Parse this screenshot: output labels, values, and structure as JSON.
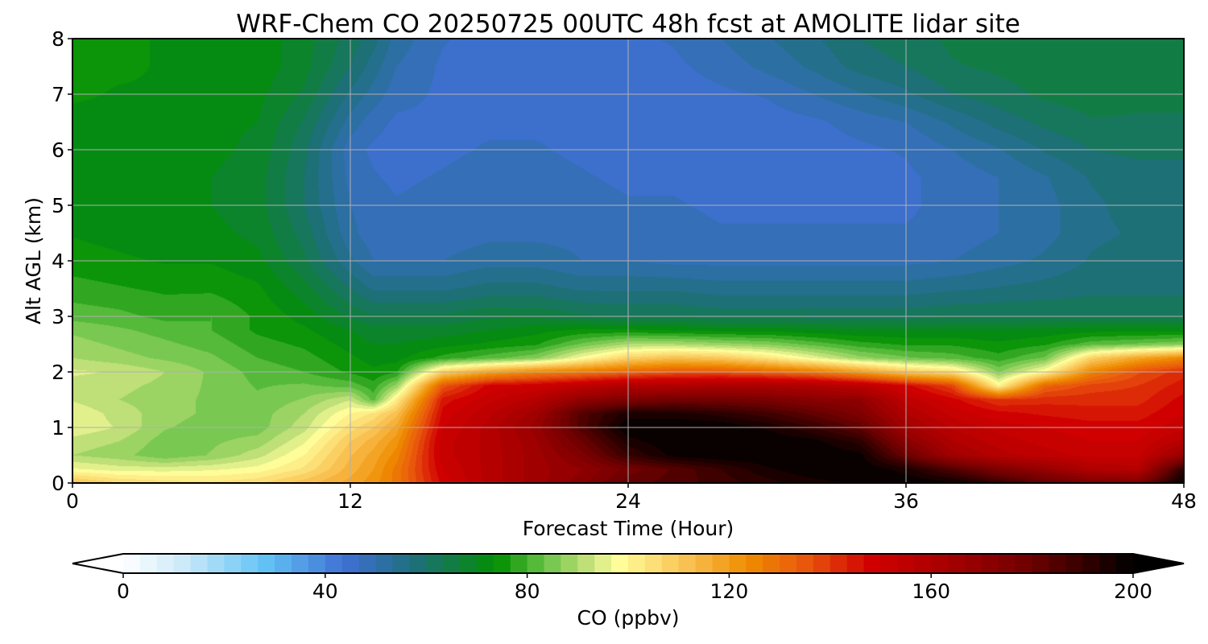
{
  "chart_data": {
    "type": "heatmap",
    "title": "WRF-Chem CO  20250725 00UTC 48h fcst at AMOLITE lidar site",
    "xlabel": "Forecast Time (Hour)",
    "ylabel": "Alt AGL (km)",
    "xlim": [
      0,
      48
    ],
    "ylim": [
      0,
      8
    ],
    "xticks": [
      0,
      12,
      24,
      36,
      48
    ],
    "yticks": [
      0,
      1,
      2,
      3,
      4,
      5,
      6,
      7,
      8
    ],
    "grid": true,
    "x": [
      0,
      2,
      4,
      6,
      8,
      10,
      12,
      13,
      14,
      16,
      18,
      20,
      22,
      24,
      26,
      28,
      30,
      32,
      34,
      36,
      38,
      40,
      42,
      44,
      46,
      48
    ],
    "y": [
      0,
      0.25,
      0.5,
      0.75,
      1,
      1.25,
      1.5,
      1.75,
      2,
      2.25,
      2.5,
      2.75,
      3,
      3.5,
      4,
      4.5,
      5,
      5.5,
      6,
      6.5,
      7,
      7.5,
      8
    ],
    "z": [
      [
        112,
        107,
        105,
        104,
        106,
        112,
        118,
        122,
        128,
        148,
        158,
        165,
        172,
        182,
        185,
        188,
        192,
        195,
        198,
        200,
        198,
        190,
        182,
        176,
        175,
        200
      ],
      [
        97,
        95,
        95,
        96,
        98,
        104,
        115,
        120,
        128,
        150,
        158,
        165,
        170,
        178,
        184,
        190,
        196,
        200,
        200,
        195,
        185,
        175,
        168,
        160,
        158,
        192
      ],
      [
        90,
        88,
        84,
        87,
        92,
        100,
        113,
        118,
        125,
        152,
        158,
        165,
        175,
        190,
        198,
        200,
        200,
        200,
        198,
        180,
        165,
        158,
        155,
        152,
        152,
        168
      ],
      [
        92,
        90,
        85,
        86,
        88,
        96,
        110,
        115,
        122,
        152,
        158,
        166,
        180,
        195,
        200,
        200,
        200,
        198,
        192,
        172,
        160,
        155,
        152,
        150,
        150,
        158
      ],
      [
        96,
        93,
        87,
        85,
        85,
        92,
        105,
        110,
        118,
        150,
        158,
        168,
        185,
        200,
        200,
        200,
        196,
        190,
        182,
        165,
        156,
        152,
        150,
        148,
        148,
        152
      ],
      [
        96,
        92,
        88,
        86,
        85,
        90,
        100,
        104,
        112,
        148,
        156,
        165,
        185,
        195,
        195,
        192,
        188,
        182,
        175,
        160,
        152,
        148,
        146,
        145,
        145,
        150
      ],
      [
        93,
        90,
        88,
        86,
        84,
        87,
        93,
        82,
        102,
        145,
        152,
        158,
        170,
        175,
        178,
        178,
        176,
        172,
        170,
        155,
        148,
        140,
        142,
        142,
        142,
        148
      ],
      [
        92,
        91,
        89,
        86,
        83,
        84,
        82,
        78,
        88,
        135,
        148,
        150,
        155,
        160,
        160,
        162,
        162,
        160,
        156,
        148,
        138,
        100,
        132,
        138,
        140,
        145
      ],
      [
        94,
        93,
        90,
        86,
        82,
        80,
        76,
        74,
        76,
        108,
        118,
        125,
        128,
        132,
        135,
        135,
        132,
        128,
        120,
        110,
        105,
        86,
        100,
        125,
        136,
        142
      ],
      [
        90,
        88,
        86,
        84,
        80,
        78,
        74,
        72,
        72,
        78,
        82,
        86,
        98,
        108,
        112,
        110,
        104,
        96,
        88,
        84,
        82,
        78,
        84,
        108,
        118,
        125
      ],
      [
        88,
        86,
        84,
        82,
        78,
        76,
        72,
        70,
        70,
        72,
        74,
        76,
        84,
        90,
        90,
        88,
        86,
        82,
        78,
        76,
        76,
        74,
        76,
        82,
        84,
        86
      ],
      [
        86,
        84,
        82,
        80,
        76,
        74,
        70,
        68,
        68,
        68,
        70,
        72,
        74,
        74,
        73,
        72,
        72,
        71,
        70,
        70,
        70,
        70,
        71,
        72,
        72,
        72
      ],
      [
        82,
        81,
        79,
        80,
        76,
        72,
        66,
        64,
        64,
        64,
        66,
        66,
        64,
        63,
        63,
        62,
        62,
        62,
        62,
        62,
        63,
        63,
        63,
        63,
        63,
        63
      ],
      [
        78,
        77,
        76,
        76,
        74,
        68,
        60,
        56,
        56,
        56,
        58,
        58,
        56,
        56,
        56,
        55,
        55,
        55,
        55,
        55,
        56,
        57,
        58,
        59,
        59,
        59
      ],
      [
        75,
        74,
        73,
        73,
        71,
        64,
        54,
        50,
        50,
        50,
        52,
        52,
        50,
        50,
        49,
        49,
        49,
        49,
        49,
        49,
        50,
        52,
        54,
        57,
        58,
        58
      ],
      [
        73,
        72,
        71,
        71,
        69,
        62,
        51,
        48,
        48,
        48,
        49,
        49,
        49,
        48,
        48,
        47,
        47,
        47,
        47,
        47,
        48,
        50,
        52,
        56,
        57,
        57
      ],
      [
        72,
        71,
        70,
        70,
        68,
        60,
        50,
        48,
        47,
        48,
        49,
        49,
        48,
        47,
        47,
        46,
        46,
        46,
        46,
        46,
        48,
        50,
        52,
        56,
        58,
        57
      ],
      [
        72,
        71,
        70,
        70,
        68,
        60,
        49,
        47,
        46,
        47,
        48,
        48,
        47,
        46,
        46,
        45,
        45,
        45,
        45,
        46,
        48,
        50,
        53,
        57,
        58,
        58
      ],
      [
        72,
        72,
        71,
        71,
        69,
        61,
        48,
        46,
        45,
        46,
        47,
        47,
        46,
        45,
        45,
        45,
        45,
        45,
        46,
        47,
        50,
        53,
        57,
        60,
        61,
        61
      ],
      [
        72,
        72,
        72,
        71,
        70,
        63,
        52,
        48,
        46,
        46,
        46,
        46,
        46,
        45,
        45,
        45,
        45,
        46,
        48,
        50,
        54,
        58,
        61,
        63,
        63,
        63
      ],
      [
        74,
        73,
        73,
        72,
        71,
        66,
        56,
        52,
        48,
        46,
        45,
        45,
        45,
        45,
        45,
        46,
        47,
        50,
        53,
        56,
        60,
        62,
        64,
        65,
        64,
        64
      ],
      [
        74,
        74,
        73,
        73,
        72,
        68,
        60,
        55,
        50,
        46,
        45,
        45,
        45,
        45,
        46,
        48,
        51,
        54,
        58,
        60,
        63,
        64,
        65,
        65,
        65,
        65
      ],
      [
        74,
        74,
        73,
        73,
        72,
        68,
        62,
        58,
        52,
        47,
        45,
        45,
        45,
        46,
        47,
        50,
        53,
        56,
        60,
        62,
        64,
        65,
        65,
        65,
        65,
        65
      ]
    ],
    "colorbar": {
      "label": "CO  (ppbv)",
      "min": 0,
      "max": 200,
      "ticks": [
        0,
        40,
        80,
        120,
        160,
        200
      ],
      "extend": "both",
      "levels": 60,
      "colormap": [
        [
          0,
          "#ffffff"
        ],
        [
          12,
          "#cbe9f8"
        ],
        [
          28,
          "#62c3f6"
        ],
        [
          44,
          "#3f6fd3"
        ],
        [
          58,
          "#1d6f79"
        ],
        [
          74,
          "#019000"
        ],
        [
          84,
          "#6fc54b"
        ],
        [
          92,
          "#c2e07a"
        ],
        [
          98,
          "#ffff9c"
        ],
        [
          112,
          "#f9bf4f"
        ],
        [
          124,
          "#ef8b00"
        ],
        [
          136,
          "#e8520e"
        ],
        [
          148,
          "#d10000"
        ],
        [
          164,
          "#a50000"
        ],
        [
          180,
          "#6c0000"
        ],
        [
          193,
          "#260000"
        ],
        [
          200,
          "#000000"
        ]
      ]
    }
  }
}
